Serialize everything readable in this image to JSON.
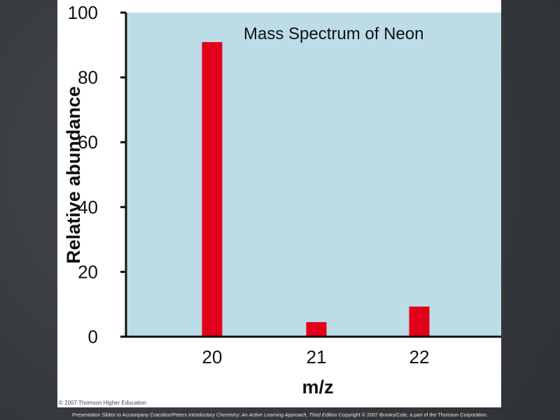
{
  "chart_data": {
    "type": "bar",
    "title": "Mass Spectrum of Neon",
    "xlabel": "m/z",
    "ylabel": "Relative abundance",
    "categories": [
      "20",
      "21",
      "22"
    ],
    "values": [
      90.9,
      4.5,
      9.3
    ],
    "ylim": [
      0,
      100
    ],
    "yticks": [
      0,
      20,
      40,
      60,
      80,
      100
    ],
    "grid": false,
    "legend": "none",
    "bar_color": "#e2001a",
    "plot_background": "#bcdde8"
  },
  "figure_copyright": "© 2007 Thomson Higher Education",
  "slide_footer": {
    "prefix": "Presentation Slides to Accompany Cracolice/Peters ",
    "book_title": "Introductory Chemistry: An Active Learning Approach, Third Edition",
    "suffix": " Copyright © 2007 Brooks/Cole, a part of the Thomson Corporation."
  }
}
